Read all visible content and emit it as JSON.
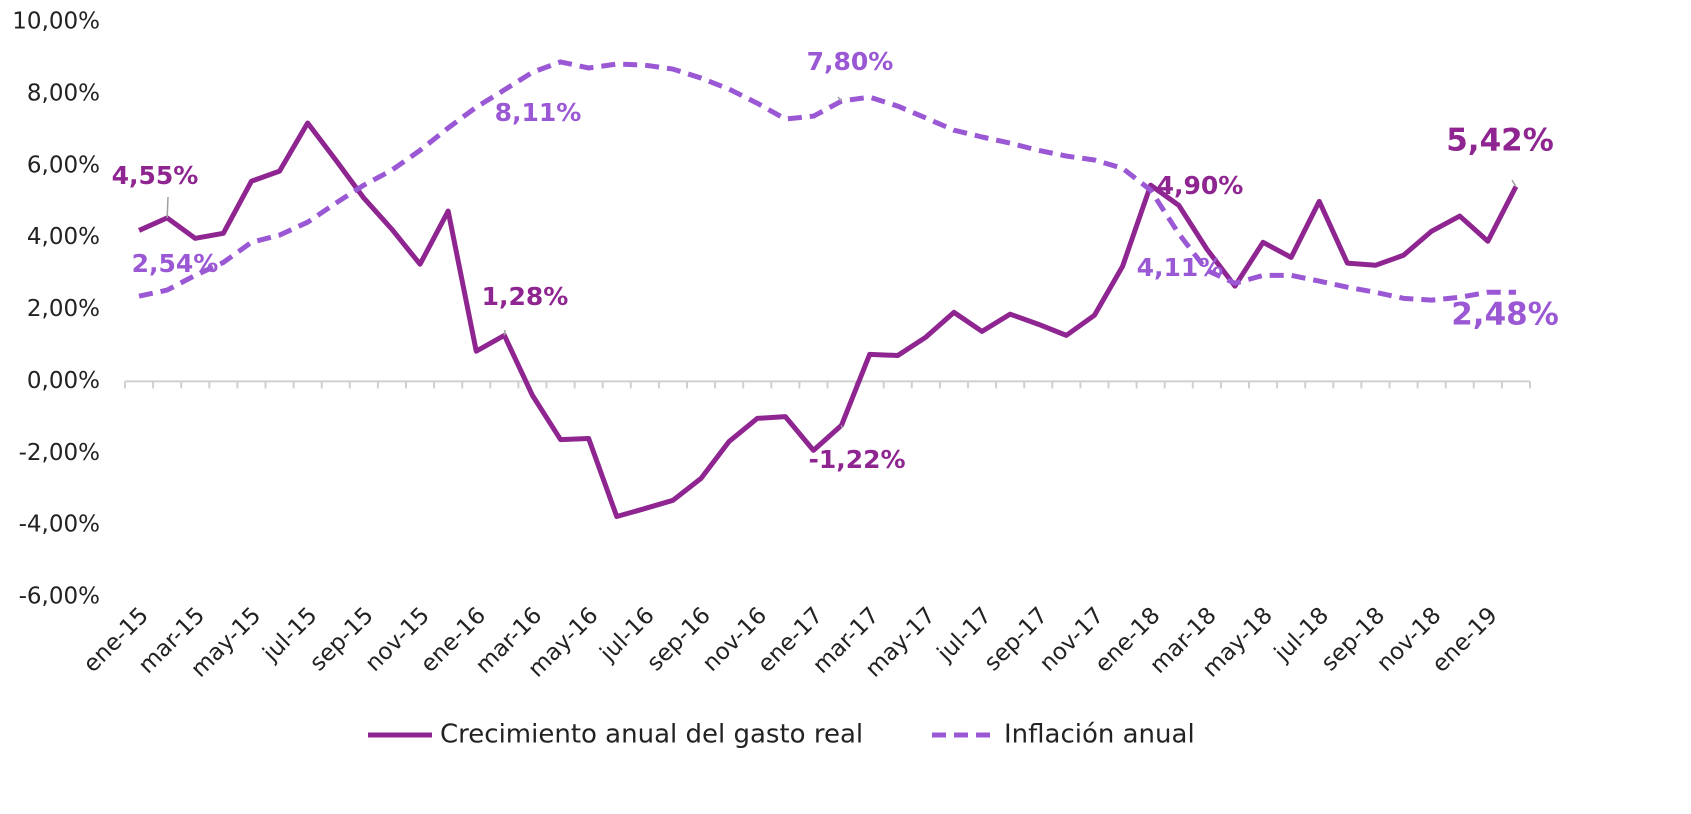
{
  "chart_data": {
    "type": "line",
    "categories": [
      "ene-15",
      null,
      "mar-15",
      null,
      "may-15",
      null,
      "jul-15",
      null,
      "sep-15",
      null,
      "nov-15",
      null,
      "ene-16",
      null,
      "mar-16",
      null,
      "may-16",
      null,
      "jul-16",
      null,
      "sep-16",
      null,
      "nov-16",
      null,
      "ene-17",
      null,
      "mar-17",
      null,
      "may-17",
      null,
      "jul-17",
      null,
      "sep-17",
      null,
      "nov-17",
      null,
      "ene-18",
      null,
      "mar-18",
      null,
      "may-18",
      null,
      "jul-18",
      null,
      "sep-18",
      null,
      "nov-18",
      null,
      "ene-19",
      null
    ],
    "series": [
      {
        "name": "Crecimiento anual del gasto real",
        "color": "#8e2590",
        "dash": false,
        "values": [
          4.2,
          4.55,
          3.98,
          4.12,
          5.57,
          5.85,
          7.19,
          6.16,
          5.1,
          4.23,
          3.26,
          4.74,
          0.84,
          1.28,
          -0.39,
          -1.62,
          -1.59,
          -3.76,
          -3.54,
          -3.31,
          -2.7,
          -1.67,
          -1.03,
          -0.98,
          -1.92,
          -1.22,
          0.75,
          0.72,
          1.23,
          1.92,
          1.39,
          1.87,
          1.59,
          1.28,
          1.84,
          3.2,
          5.46,
          4.9,
          3.68,
          2.65,
          3.87,
          3.45,
          5.01,
          3.29,
          3.23,
          3.51,
          4.18,
          4.6,
          3.9,
          5.42
        ],
        "value_labels": [
          null,
          "4,55%",
          null,
          null,
          null,
          null,
          null,
          null,
          null,
          null,
          null,
          null,
          null,
          "1,28%",
          null,
          null,
          null,
          null,
          null,
          null,
          null,
          null,
          null,
          null,
          null,
          "-1,22%",
          null,
          null,
          null,
          null,
          null,
          null,
          null,
          null,
          null,
          null,
          null,
          "4,90%",
          null,
          null,
          null,
          null,
          null,
          null,
          null,
          null,
          null,
          null,
          null,
          "5,42%"
        ]
      },
      {
        "name": "Inflación anual",
        "color": "#9b58d4",
        "dash": true,
        "values": [
          2.37,
          2.54,
          2.95,
          3.31,
          3.87,
          4.07,
          4.43,
          4.96,
          5.46,
          5.88,
          6.43,
          7.05,
          7.63,
          8.11,
          8.6,
          8.89,
          8.72,
          8.83,
          8.8,
          8.69,
          8.44,
          8.13,
          7.74,
          7.3,
          7.38,
          7.8,
          7.91,
          7.66,
          7.33,
          6.99,
          6.8,
          6.63,
          6.43,
          6.27,
          6.16,
          5.93,
          5.32,
          4.11,
          3.09,
          2.73,
          2.95,
          2.95,
          2.79,
          2.62,
          2.48,
          2.31,
          2.26,
          2.34,
          2.48,
          2.48
        ],
        "value_labels": [
          null,
          "2,54%",
          null,
          null,
          null,
          null,
          null,
          null,
          null,
          null,
          null,
          null,
          null,
          "8,11%",
          null,
          null,
          null,
          null,
          null,
          null,
          null,
          null,
          null,
          null,
          null,
          "7,80%",
          null,
          null,
          null,
          null,
          null,
          null,
          null,
          null,
          null,
          null,
          null,
          "4,11%",
          null,
          null,
          null,
          null,
          null,
          null,
          null,
          null,
          null,
          null,
          null,
          "2,48%"
        ]
      }
    ],
    "ylim": [
      -6,
      10
    ],
    "yticks": [
      {
        "value": -6,
        "label": "-6,00%"
      },
      {
        "value": -4,
        "label": "-4,00%"
      },
      {
        "value": -2,
        "label": "-2,00%"
      },
      {
        "value": 0,
        "label": "0,00%"
      },
      {
        "value": 2,
        "label": "2,00%"
      },
      {
        "value": 4,
        "label": "4,00%"
      },
      {
        "value": 6,
        "label": "6,00%"
      },
      {
        "value": 8,
        "label": "8,00%"
      },
      {
        "value": 10,
        "label": "10,00%"
      }
    ],
    "legend": "bottom"
  }
}
